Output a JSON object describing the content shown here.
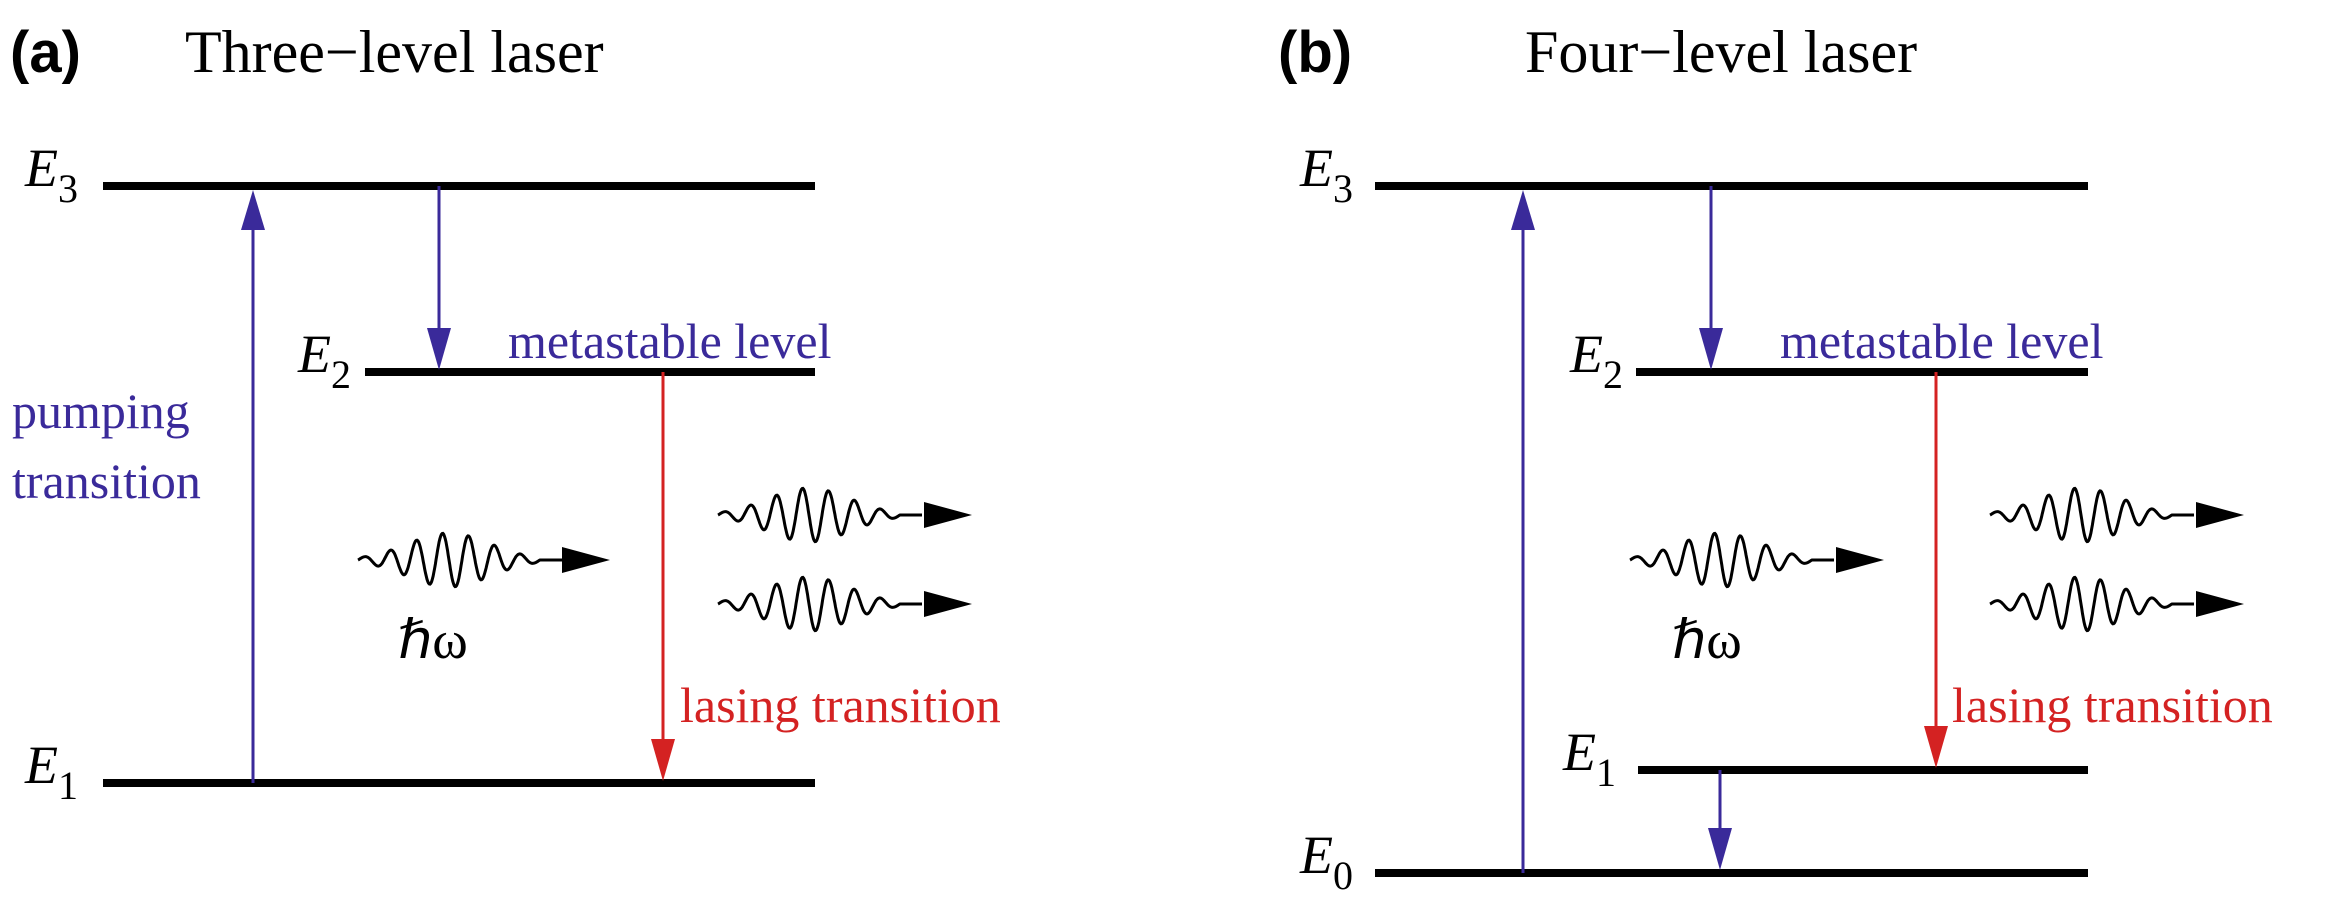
{
  "colors": {
    "blue": "#3a2a9a",
    "red": "#d42222",
    "black": "#000000"
  },
  "panels": [
    {
      "letter": "(a)",
      "title": "Three−level laser",
      "levels": [
        {
          "symbol": "E",
          "subscript": "3"
        },
        {
          "symbol": "E",
          "subscript": "2"
        },
        {
          "symbol": "E",
          "subscript": "1"
        }
      ],
      "metastable_label": "metastable level",
      "pumping_label_line1": "pumping",
      "pumping_label_line2": "transition",
      "lasing_label": "lasing transition",
      "photon_label": "ℏω"
    },
    {
      "letter": "(b)",
      "title": "Four−level laser",
      "levels": [
        {
          "symbol": "E",
          "subscript": "3"
        },
        {
          "symbol": "E",
          "subscript": "2"
        },
        {
          "symbol": "E",
          "subscript": "1"
        },
        {
          "symbol": "E",
          "subscript": "0"
        }
      ],
      "metastable_label": "metastable level",
      "lasing_label": "lasing transition",
      "photon_label": "ℏω"
    }
  ]
}
